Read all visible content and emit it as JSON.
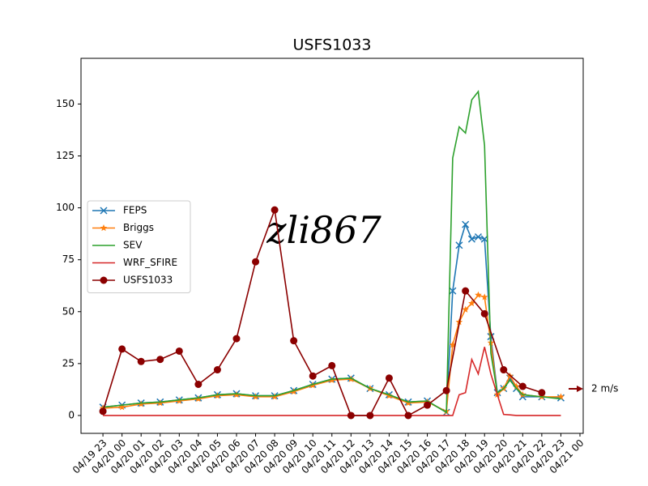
{
  "chart_data": {
    "type": "line",
    "title": "USFS1033",
    "annotation": "zli867",
    "quiver_key_label": "2 m/s",
    "xlim": [
      -1.15,
      25.17
    ],
    "ylim": [
      -8.6,
      172
    ],
    "xticks": [
      {
        "value": 0,
        "label": "04/19 23"
      },
      {
        "value": 1,
        "label": "04/20 00"
      },
      {
        "value": 2,
        "label": "04/20 01"
      },
      {
        "value": 3,
        "label": "04/20 02"
      },
      {
        "value": 4,
        "label": "04/20 03"
      },
      {
        "value": 5,
        "label": "04/20 04"
      },
      {
        "value": 6,
        "label": "04/20 05"
      },
      {
        "value": 7,
        "label": "04/20 06"
      },
      {
        "value": 8,
        "label": "04/20 07"
      },
      {
        "value": 9,
        "label": "04/20 08"
      },
      {
        "value": 10,
        "label": "04/20 09"
      },
      {
        "value": 11,
        "label": "04/20 10"
      },
      {
        "value": 12,
        "label": "04/20 11"
      },
      {
        "value": 13,
        "label": "04/20 12"
      },
      {
        "value": 14,
        "label": "04/20 13"
      },
      {
        "value": 15,
        "label": "04/20 14"
      },
      {
        "value": 16,
        "label": "04/20 15"
      },
      {
        "value": 17,
        "label": "04/20 16"
      },
      {
        "value": 18,
        "label": "04/20 17"
      },
      {
        "value": 19,
        "label": "04/20 18"
      },
      {
        "value": 20,
        "label": "04/20 19"
      },
      {
        "value": 21,
        "label": "04/20 20"
      },
      {
        "value": 22,
        "label": "04/20 21"
      },
      {
        "value": 23,
        "label": "04/20 22"
      },
      {
        "value": 24,
        "label": "04/20 23"
      },
      {
        "value": 25,
        "label": "04/21 00"
      }
    ],
    "yticks": [
      0,
      25,
      50,
      75,
      100,
      125,
      150
    ],
    "legend": "center-left",
    "series": [
      {
        "name": "FEPS",
        "color": "#1f77b4",
        "marker": "x",
        "x": [
          0,
          1,
          2,
          3,
          4,
          5,
          6,
          7,
          8,
          9,
          10,
          11,
          12,
          13,
          14,
          15,
          16,
          17,
          18,
          18.33,
          18.67,
          19,
          19.33,
          19.67,
          20,
          20.33,
          20.67,
          21,
          21.33,
          21.67,
          22,
          23,
          24
        ],
        "values": [
          4,
          5,
          6,
          6.5,
          7.5,
          8.5,
          10,
          10.5,
          9.5,
          9.5,
          12,
          15,
          17.5,
          18,
          13,
          10,
          6.5,
          7,
          1.5,
          60,
          82,
          92,
          85,
          86,
          85,
          38,
          11,
          13,
          18,
          13,
          9,
          9,
          8.5
        ]
      },
      {
        "name": "Briggs",
        "color": "#ff7f0e",
        "marker": "star",
        "x": [
          0,
          1,
          2,
          3,
          4,
          5,
          6,
          7,
          8,
          9,
          10,
          11,
          12,
          13,
          14,
          15,
          16,
          17,
          18,
          18.33,
          18.67,
          19,
          19.33,
          19.67,
          20,
          20.33,
          20.67,
          21,
          21.33,
          21.67,
          22,
          23,
          24
        ],
        "values": [
          3.5,
          4,
          5.5,
          6,
          7,
          8,
          9.5,
          10,
          9,
          9,
          11.5,
          14.5,
          17,
          17.5,
          13,
          9.5,
          6,
          6.5,
          2,
          34,
          45,
          51,
          54,
          58,
          57,
          35,
          10,
          13,
          19,
          14,
          10,
          9,
          9
        ]
      },
      {
        "name": "SEV",
        "color": "#2ca02c",
        "marker": "none",
        "x": [
          0,
          1,
          2,
          3,
          4,
          5,
          6,
          7,
          8,
          9,
          10,
          11,
          12,
          13,
          14,
          15,
          16,
          17,
          18,
          18.33,
          18.67,
          19,
          19.33,
          19.67,
          20,
          20.33,
          20.67,
          21,
          21.33,
          21.67,
          22,
          23,
          24
        ],
        "values": [
          4,
          5,
          6,
          6.5,
          7.5,
          8.5,
          10,
          10.5,
          9.5,
          9.5,
          12,
          15,
          17.5,
          18,
          13,
          10,
          6.5,
          7,
          1.5,
          124,
          139,
          136,
          152,
          156,
          130,
          30,
          11,
          13,
          17,
          13,
          10,
          9,
          8
        ]
      },
      {
        "name": "WRF_SFIRE",
        "color": "#d62728",
        "marker": "none",
        "x": [
          0,
          1,
          2,
          3,
          4,
          5,
          6,
          7,
          8,
          9,
          10,
          11,
          12,
          13,
          14,
          15,
          16,
          17,
          18,
          18.33,
          18.67,
          19,
          19.33,
          19.67,
          20,
          20.33,
          20.67,
          21,
          21.33,
          21.67,
          22,
          23,
          24
        ],
        "values": [
          0,
          0,
          0,
          0,
          0,
          0,
          0,
          0,
          0,
          0,
          0,
          0,
          0,
          0,
          0,
          0,
          0,
          0,
          0,
          0,
          10,
          11,
          27,
          20,
          33,
          20,
          10,
          0.5,
          0.3,
          0,
          0,
          0,
          0
        ]
      },
      {
        "name": "USFS1033",
        "color": "#8b0000",
        "marker": "circle",
        "x": [
          0,
          1,
          2,
          3,
          4,
          5,
          6,
          7,
          8,
          9,
          10,
          11,
          12,
          13,
          14,
          15,
          16,
          17,
          18,
          19,
          20,
          21,
          22,
          23
        ],
        "values": [
          2,
          32,
          26,
          27,
          31,
          15,
          22,
          37,
          74,
          99,
          36,
          19,
          24,
          0,
          0,
          18,
          0,
          5,
          12,
          60,
          49,
          22,
          14,
          11
        ]
      }
    ]
  }
}
